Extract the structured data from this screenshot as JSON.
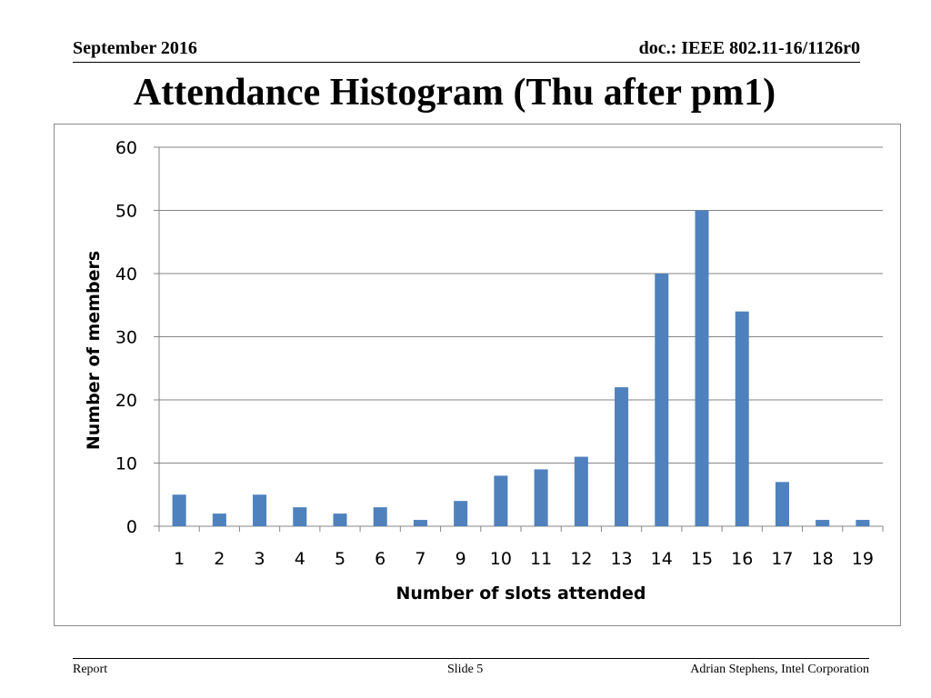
{
  "header": {
    "date": "September 2016",
    "doc": "doc.: IEEE 802.11-16/1126r0"
  },
  "slide_title": "Attendance Histogram (Thu after pm1)",
  "footer": {
    "left": "Report",
    "center": "Slide 5",
    "right": "Adrian Stephens, Intel Corporation"
  },
  "chart_data": {
    "type": "bar",
    "title": "",
    "xlabel": "Number of slots attended",
    "ylabel": "Number of members",
    "categories": [
      "1",
      "2",
      "3",
      "4",
      "5",
      "6",
      "7",
      "9",
      "10",
      "11",
      "12",
      "13",
      "14",
      "15",
      "16",
      "17",
      "18",
      "19"
    ],
    "values": [
      5,
      2,
      5,
      3,
      2,
      3,
      1,
      4,
      8,
      9,
      11,
      22,
      40,
      50,
      34,
      7,
      1,
      1
    ],
    "ylim": [
      0,
      60
    ],
    "yticks": [
      0,
      10,
      20,
      30,
      40,
      50,
      60
    ],
    "grid": true,
    "legend": "none",
    "bar_color": "#4f81bd"
  }
}
